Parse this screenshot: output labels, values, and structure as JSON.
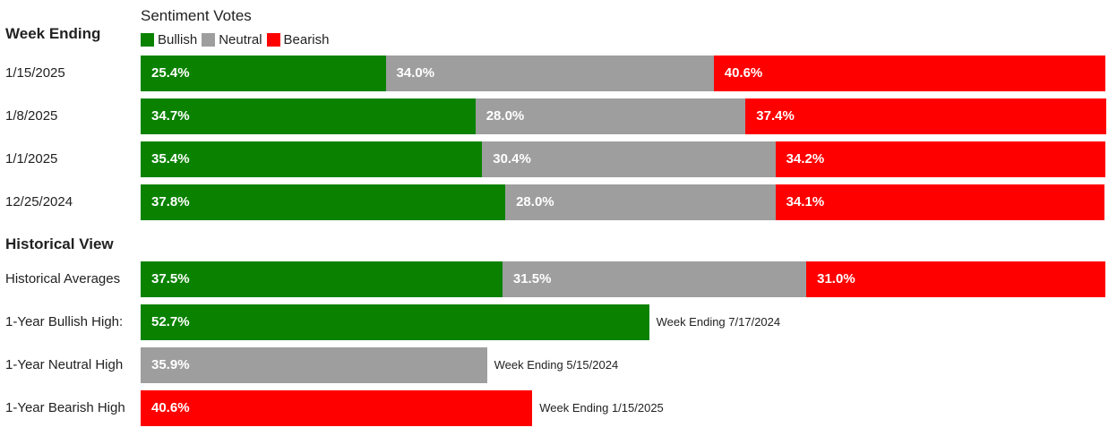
{
  "chart_data": {
    "type": "bar",
    "orientation": "horizontal",
    "stacked": true,
    "title": "Sentiment Votes",
    "xlim": [
      0,
      100
    ],
    "legend_position": "top-left",
    "colors": {
      "Bullish": "#0a8200",
      "Neutral": "#9e9e9e",
      "Bearish": "#ff0000"
    },
    "legend": [
      "Bullish",
      "Neutral",
      "Bearish"
    ],
    "sections": [
      {
        "heading": "Week Ending",
        "rows": [
          {
            "label": "1/15/2025",
            "values": {
              "Bullish": 25.4,
              "Neutral": 34.0,
              "Bearish": 40.6
            }
          },
          {
            "label": "1/8/2025",
            "values": {
              "Bullish": 34.7,
              "Neutral": 28.0,
              "Bearish": 37.4
            }
          },
          {
            "label": "1/1/2025",
            "values": {
              "Bullish": 35.4,
              "Neutral": 30.4,
              "Bearish": 34.2
            }
          },
          {
            "label": "12/25/2024",
            "values": {
              "Bullish": 37.8,
              "Neutral": 28.0,
              "Bearish": 34.1
            }
          }
        ]
      },
      {
        "heading": "Historical View",
        "rows": [
          {
            "label": "Historical Averages",
            "values": {
              "Bullish": 37.5,
              "Neutral": 31.5,
              "Bearish": 31.0
            }
          },
          {
            "label": "1-Year Bullish High:",
            "values": {
              "Bullish": 52.7
            },
            "note": "Week Ending 7/17/2024"
          },
          {
            "label": "1-Year Neutral High",
            "values": {
              "Neutral": 35.9
            },
            "note": "Week Ending 5/15/2024"
          },
          {
            "label": "1-Year Bearish High",
            "values": {
              "Bearish": 40.6
            },
            "note": "Week Ending 1/15/2025"
          }
        ]
      }
    ]
  }
}
